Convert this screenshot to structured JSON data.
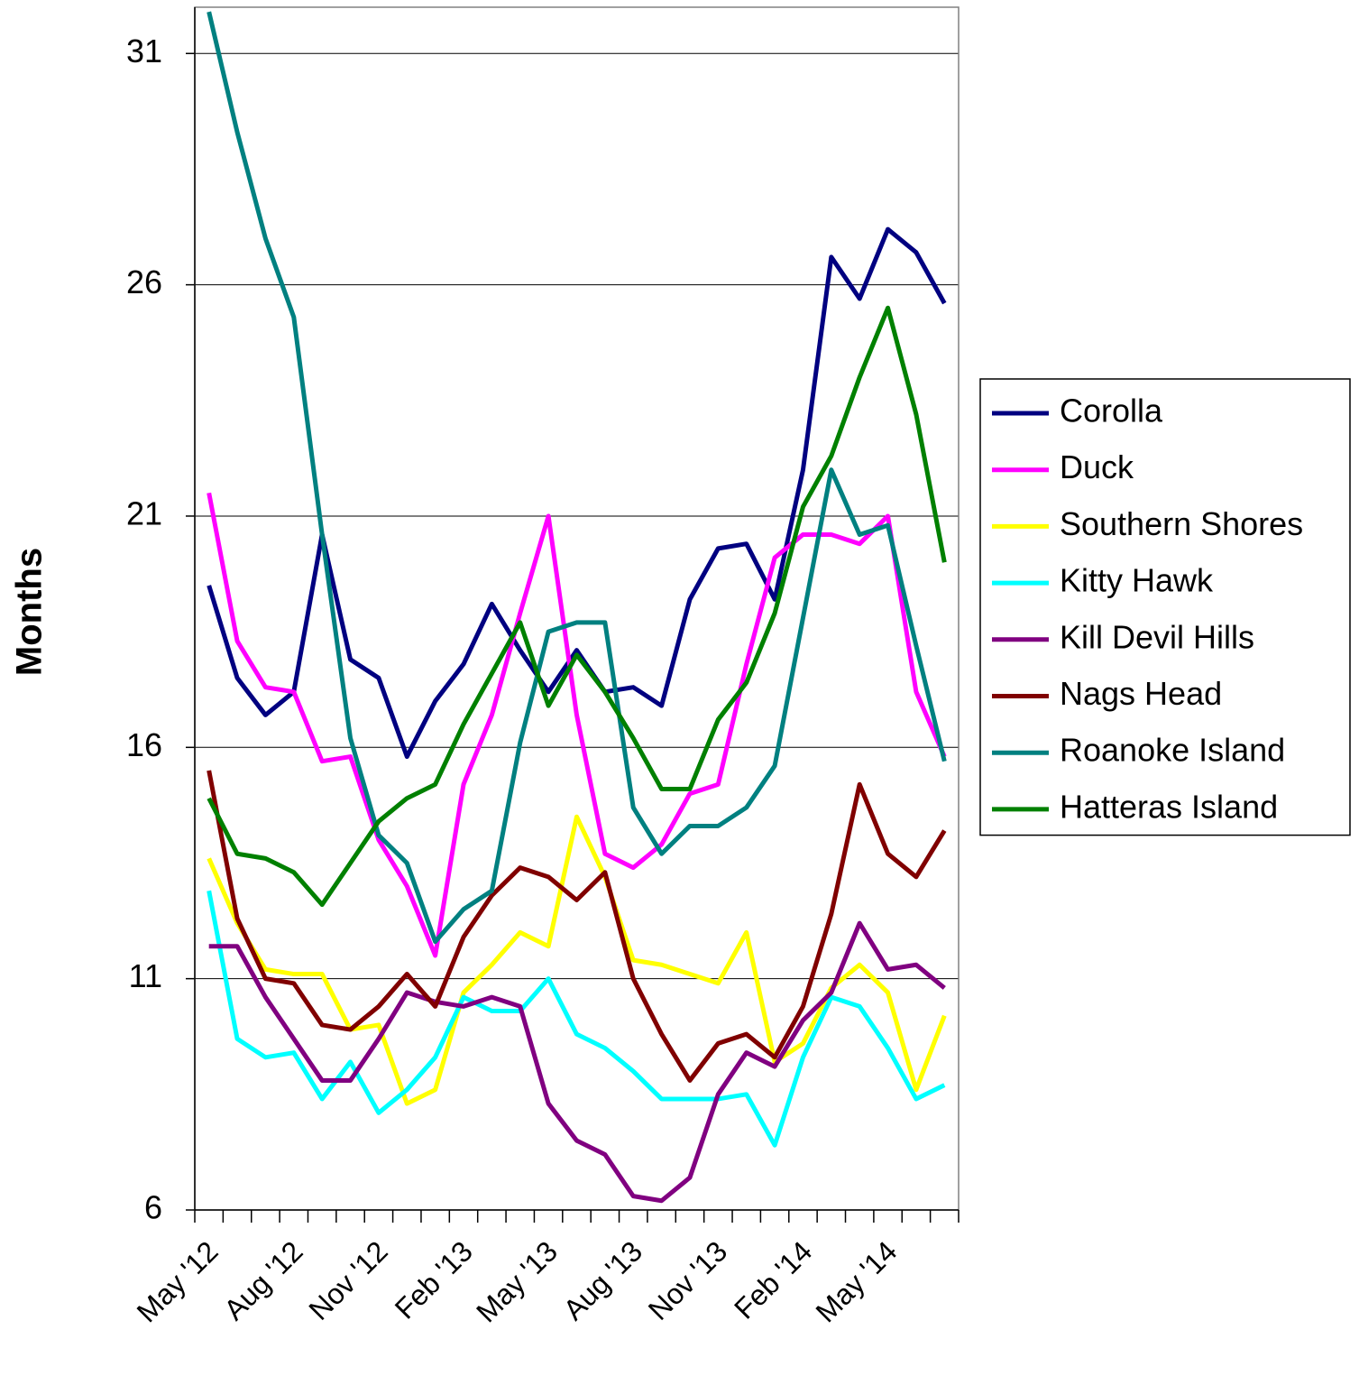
{
  "chart_data": {
    "type": "line",
    "y_label": "Months",
    "categories": [
      "May '12",
      null,
      null,
      "Aug '12",
      null,
      null,
      "Nov '12",
      null,
      null,
      "Feb '13",
      null,
      null,
      "May '13",
      null,
      null,
      "Aug '13",
      null,
      null,
      "Nov '13",
      null,
      null,
      "Feb '14",
      null,
      null,
      "May '14",
      null,
      null
    ],
    "series": [
      {
        "name": "Corolla",
        "color": "#000080",
        "values": [
          19.5,
          17.5,
          16.7,
          17.2,
          20.6,
          17.9,
          17.5,
          15.8,
          17.0,
          17.8,
          19.1,
          18.1,
          17.2,
          18.1,
          17.2,
          17.3,
          16.9,
          19.2,
          20.3,
          20.4,
          19.2,
          22.0,
          26.6,
          25.7,
          27.2,
          26.7,
          25.6
        ]
      },
      {
        "name": "Duck",
        "color": "#ff00ff",
        "values": [
          21.5,
          18.3,
          17.3,
          17.2,
          15.7,
          15.8,
          14.0,
          13.0,
          11.5,
          15.2,
          16.7,
          18.9,
          21.0,
          16.7,
          13.7,
          13.4,
          13.9,
          15.0,
          15.2,
          17.8,
          20.1,
          20.6,
          20.6,
          20.4,
          21.0,
          17.2,
          15.8
        ]
      },
      {
        "name": "Southern Shores",
        "color": "#ffff00",
        "values": [
          13.6,
          12.2,
          11.2,
          11.1,
          11.1,
          9.9,
          10.0,
          8.3,
          8.6,
          10.7,
          11.3,
          12.0,
          11.7,
          14.5,
          13.2,
          11.4,
          11.3,
          11.1,
          10.9,
          12.0,
          9.2,
          9.6,
          10.8,
          11.3,
          10.7,
          8.6,
          10.2
        ]
      },
      {
        "name": "Kitty Hawk",
        "color": "#00ffff",
        "values": [
          12.9,
          9.7,
          9.3,
          9.4,
          8.4,
          9.2,
          8.1,
          8.6,
          9.3,
          10.6,
          10.3,
          10.3,
          11.0,
          9.8,
          9.5,
          9.0,
          8.4,
          8.4,
          8.4,
          8.5,
          7.4,
          9.3,
          10.6,
          10.4,
          9.5,
          8.4,
          8.7
        ]
      },
      {
        "name": "Kill Devil Hills",
        "color": "#800080",
        "values": [
          11.7,
          11.7,
          10.6,
          9.7,
          8.8,
          8.8,
          9.7,
          10.7,
          10.5,
          10.4,
          10.6,
          10.4,
          8.3,
          7.5,
          7.2,
          6.3,
          6.2,
          6.7,
          8.5,
          9.4,
          9.1,
          10.1,
          10.7,
          12.2,
          11.2,
          11.3,
          10.8
        ]
      },
      {
        "name": "Nags Head",
        "color": "#800000",
        "values": [
          15.5,
          12.3,
          11.0,
          10.9,
          10.0,
          9.9,
          10.4,
          11.1,
          10.4,
          11.9,
          12.8,
          13.4,
          13.2,
          12.7,
          13.3,
          11.0,
          9.8,
          8.8,
          9.6,
          9.8,
          9.3,
          10.4,
          12.4,
          15.2,
          13.7,
          13.2,
          14.2
        ]
      },
      {
        "name": "Roanoke Island",
        "color": "#008080",
        "values": [
          31.9,
          29.3,
          27.0,
          25.3,
          20.6,
          16.2,
          14.1,
          13.5,
          11.8,
          12.5,
          12.9,
          16.1,
          18.5,
          18.7,
          18.7,
          14.7,
          13.7,
          14.3,
          14.3,
          14.7,
          15.6,
          18.8,
          22.0,
          20.6,
          20.8,
          18.2,
          15.7
        ]
      },
      {
        "name": "Hatteras Island",
        "color": "#008000",
        "values": [
          14.9,
          13.7,
          13.6,
          13.3,
          12.6,
          13.5,
          14.4,
          14.9,
          15.2,
          16.5,
          17.6,
          18.7,
          16.9,
          18.0,
          17.2,
          16.2,
          15.1,
          15.1,
          16.6,
          17.4,
          18.9,
          21.2,
          22.3,
          24.0,
          25.5,
          23.2,
          20.0
        ]
      }
    ],
    "ylim": [
      6,
      32
    ],
    "yticks": [
      6,
      11,
      16,
      21,
      26,
      31
    ],
    "grid": true,
    "legend": "right"
  }
}
